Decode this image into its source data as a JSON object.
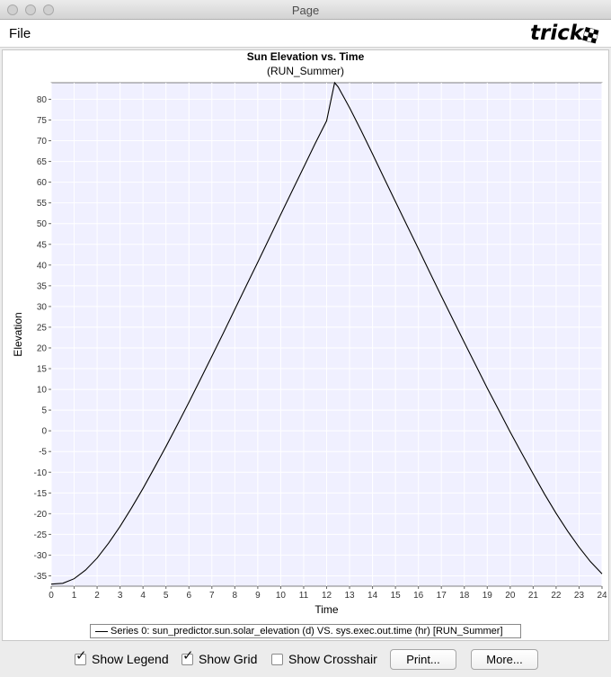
{
  "window": {
    "title": "Page"
  },
  "menubar": {
    "file_label": "File",
    "logo_text": "trick"
  },
  "plot": {
    "title": "Sun Elevation vs. Time",
    "subtitle": "(RUN_Summer)",
    "legend_text": "Series 0: sun_predictor.sun.solar_elevation (d) VS. sys.exec.out.time (hr) [RUN_Summer]"
  },
  "controls": {
    "show_legend": {
      "label": "Show Legend",
      "checked": true
    },
    "show_grid": {
      "label": "Show Grid",
      "checked": true
    },
    "show_crosshair": {
      "label": "Show Crosshair",
      "checked": false
    },
    "print_label": "Print...",
    "more_label": "More..."
  },
  "colors": {
    "plot_background": "#f0f0ff",
    "grid": "#ffffff",
    "series": "#000000"
  },
  "chart_data": {
    "type": "line",
    "title": "Sun Elevation vs. Time",
    "subtitle": "(RUN_Summer)",
    "xlabel": "Time",
    "ylabel": "Elevation",
    "xlim": [
      0,
      24
    ],
    "ylim": [
      -37.5,
      84
    ],
    "x_ticks": [
      0,
      1,
      2,
      3,
      4,
      5,
      6,
      7,
      8,
      9,
      10,
      11,
      12,
      13,
      14,
      15,
      16,
      17,
      18,
      19,
      20,
      21,
      22,
      23,
      24
    ],
    "y_ticks": [
      -35,
      -30,
      -25,
      -20,
      -15,
      -10,
      -5,
      0,
      5,
      10,
      15,
      20,
      25,
      30,
      35,
      40,
      45,
      50,
      55,
      60,
      65,
      70,
      75,
      80
    ],
    "grid": true,
    "legend": "bottom-center",
    "series": [
      {
        "name": "Series 0: sun_predictor.sun.solar_elevation (d) VS. sys.exec.out.time (hr) [RUN_Summer]",
        "x": [
          0,
          0.5,
          1,
          1.5,
          2,
          2.5,
          3,
          3.5,
          4,
          4.5,
          5,
          5.5,
          6,
          6.5,
          7,
          7.5,
          8,
          8.5,
          9,
          9.5,
          10,
          10.5,
          11,
          11.5,
          12,
          12.35,
          12.5,
          13,
          13.5,
          14,
          14.5,
          15,
          15.5,
          16,
          16.5,
          17,
          17.5,
          18,
          18.5,
          19,
          19.5,
          20,
          20.5,
          21,
          21.5,
          22,
          22.5,
          23,
          23.5,
          24
        ],
        "y": [
          -37,
          -36.8,
          -35.7,
          -33.6,
          -30.7,
          -27.1,
          -23.1,
          -18.6,
          -13.9,
          -8.9,
          -3.8,
          1.5,
          6.9,
          12.4,
          18.0,
          23.6,
          29.3,
          35.0,
          40.7,
          46.4,
          52.2,
          57.9,
          63.6,
          69.3,
          74.8,
          84,
          83.0,
          78.0,
          72.5,
          66.8,
          61.0,
          55.3,
          49.6,
          43.9,
          38.2,
          32.5,
          26.9,
          21.3,
          15.8,
          10.3,
          5.0,
          -0.3,
          -5.4,
          -10.4,
          -15.3,
          -19.9,
          -24.2,
          -28.1,
          -31.6,
          -34.5
        ]
      }
    ]
  }
}
